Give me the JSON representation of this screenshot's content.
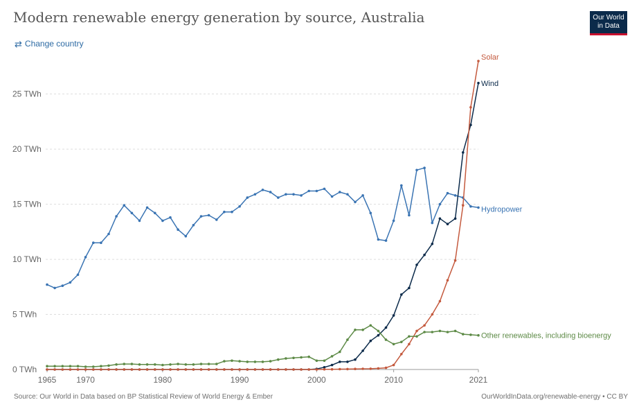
{
  "header": {
    "title": "Modern renewable energy generation by source, Australia",
    "change_country": "Change country",
    "logo_line1": "Our World",
    "logo_line2": "in Data"
  },
  "footer": {
    "source": "Source: Our World in Data based on BP Statistical Review of World Energy & Ember",
    "url": "OurWorldInData.org/renewable-energy • CC BY"
  },
  "chart_data": {
    "type": "line",
    "title": "Modern renewable energy generation by source, Australia",
    "xlabel": "",
    "ylabel": "",
    "xlim": [
      1965,
      2021
    ],
    "ylim": [
      0,
      28
    ],
    "x_ticks": [
      1965,
      1970,
      1980,
      1990,
      2000,
      2010,
      2021
    ],
    "y_ticks": [
      {
        "value": 0,
        "label": "0 TWh"
      },
      {
        "value": 5,
        "label": "5 TWh"
      },
      {
        "value": 10,
        "label": "10 TWh"
      },
      {
        "value": 15,
        "label": "15 TWh"
      },
      {
        "value": 20,
        "label": "20 TWh"
      },
      {
        "value": 25,
        "label": "25 TWh"
      }
    ],
    "grid": "horizontal dashed",
    "legend": "inline labels at line ends (right)",
    "x": [
      1965,
      1966,
      1967,
      1968,
      1969,
      1970,
      1971,
      1972,
      1973,
      1974,
      1975,
      1976,
      1977,
      1978,
      1979,
      1980,
      1981,
      1982,
      1983,
      1984,
      1985,
      1986,
      1987,
      1988,
      1989,
      1990,
      1991,
      1992,
      1993,
      1994,
      1995,
      1996,
      1997,
      1998,
      1999,
      2000,
      2001,
      2002,
      2003,
      2004,
      2005,
      2006,
      2007,
      2008,
      2009,
      2010,
      2011,
      2012,
      2013,
      2014,
      2015,
      2016,
      2017,
      2018,
      2019,
      2020,
      2021
    ],
    "series": [
      {
        "name": "Hydropower",
        "color": "#3a74b3",
        "values": [
          7.7,
          7.4,
          7.6,
          7.9,
          8.6,
          10.2,
          11.5,
          11.5,
          12.3,
          13.9,
          14.9,
          14.2,
          13.5,
          14.7,
          14.2,
          13.5,
          13.8,
          12.7,
          12.1,
          13.1,
          13.9,
          14.0,
          13.6,
          14.3,
          14.3,
          14.8,
          15.6,
          15.9,
          16.3,
          16.1,
          15.6,
          15.9,
          15.9,
          15.8,
          16.2,
          16.2,
          16.4,
          15.7,
          16.1,
          15.9,
          15.2,
          15.8,
          14.2,
          11.8,
          11.7,
          13.5,
          16.7,
          14.0,
          18.1,
          18.3,
          13.3,
          15.0,
          16.0,
          15.8,
          15.6,
          14.8,
          14.7
        ]
      },
      {
        "name": "Wind",
        "color": "#0b2a4a",
        "values": [
          0,
          0,
          0,
          0,
          0,
          0,
          0,
          0,
          0,
          0,
          0,
          0,
          0,
          0,
          0,
          0,
          0,
          0,
          0,
          0,
          0,
          0,
          0,
          0,
          0,
          0,
          0,
          0,
          0,
          0,
          0,
          0,
          0,
          0,
          0,
          0.05,
          0.2,
          0.4,
          0.7,
          0.7,
          0.9,
          1.7,
          2.6,
          3.1,
          3.8,
          4.9,
          6.8,
          7.4,
          9.5,
          10.4,
          11.4,
          13.7,
          13.2,
          13.7,
          19.7,
          22.2,
          26.0
        ]
      },
      {
        "name": "Solar",
        "color": "#c4593d",
        "values": [
          0,
          0,
          0,
          0,
          0,
          0,
          0,
          0,
          0,
          0,
          0,
          0,
          0,
          0,
          0,
          0,
          0,
          0,
          0,
          0,
          0,
          0,
          0,
          0,
          0,
          0,
          0,
          0,
          0,
          0,
          0,
          0,
          0,
          0,
          0,
          0,
          0.02,
          0.02,
          0.03,
          0.04,
          0.05,
          0.06,
          0.07,
          0.1,
          0.15,
          0.4,
          1.4,
          2.3,
          3.5,
          4.0,
          5.0,
          6.2,
          8.1,
          9.9,
          14.9,
          23.8,
          28.0
        ]
      },
      {
        "name": "Other renewables, including bioenergy",
        "color": "#5d8a46",
        "values": [
          0.3,
          0.3,
          0.3,
          0.3,
          0.3,
          0.25,
          0.25,
          0.3,
          0.35,
          0.45,
          0.5,
          0.5,
          0.45,
          0.45,
          0.45,
          0.4,
          0.45,
          0.5,
          0.45,
          0.45,
          0.5,
          0.5,
          0.5,
          0.75,
          0.8,
          0.75,
          0.7,
          0.7,
          0.7,
          0.75,
          0.9,
          1.0,
          1.05,
          1.1,
          1.15,
          0.8,
          0.8,
          1.2,
          1.6,
          2.7,
          3.6,
          3.6,
          4.0,
          3.5,
          2.7,
          2.3,
          2.5,
          3.0,
          3.0,
          3.4,
          3.4,
          3.5,
          3.4,
          3.5,
          3.2,
          3.15,
          3.1
        ]
      }
    ]
  }
}
